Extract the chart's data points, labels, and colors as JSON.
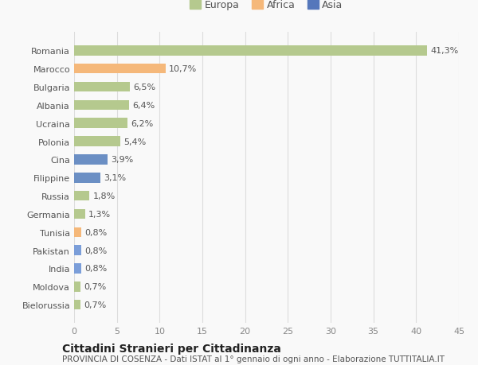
{
  "categories": [
    "Bielorussia",
    "Moldova",
    "India",
    "Pakistan",
    "Tunisia",
    "Germania",
    "Russia",
    "Filippine",
    "Cina",
    "Polonia",
    "Ucraina",
    "Albania",
    "Bulgaria",
    "Marocco",
    "Romania"
  ],
  "values": [
    0.7,
    0.7,
    0.8,
    0.8,
    0.8,
    1.3,
    1.8,
    3.1,
    3.9,
    5.4,
    6.2,
    6.4,
    6.5,
    10.7,
    41.3
  ],
  "colors": [
    "#b5c98e",
    "#b5c98e",
    "#7b9ed9",
    "#7b9ed9",
    "#f5b87a",
    "#b5c98e",
    "#b5c98e",
    "#6b8fc4",
    "#6b8fc4",
    "#b5c98e",
    "#b5c98e",
    "#b5c98e",
    "#b5c98e",
    "#f5b87a",
    "#b5c98e"
  ],
  "labels": [
    "0,7%",
    "0,7%",
    "0,8%",
    "0,8%",
    "0,8%",
    "1,3%",
    "1,8%",
    "3,1%",
    "3,9%",
    "5,4%",
    "6,2%",
    "6,4%",
    "6,5%",
    "10,7%",
    "41,3%"
  ],
  "xlim": [
    0,
    45
  ],
  "xticks": [
    0,
    5,
    10,
    15,
    20,
    25,
    30,
    35,
    40,
    45
  ],
  "legend_europa_color": "#b5c98e",
  "legend_africa_color": "#f5b87a",
  "legend_asia_color": "#5577bb",
  "title": "Cittadini Stranieri per Cittadinanza",
  "subtitle": "PROVINCIA DI COSENZA - Dati ISTAT al 1° gennaio di ogni anno - Elaborazione TUTTITALIA.IT",
  "background_color": "#f9f9f9",
  "grid_color": "#dddddd",
  "bar_height": 0.55,
  "title_fontsize": 10,
  "subtitle_fontsize": 7.5,
  "label_fontsize": 8,
  "tick_fontsize": 8,
  "legend_fontsize": 9
}
